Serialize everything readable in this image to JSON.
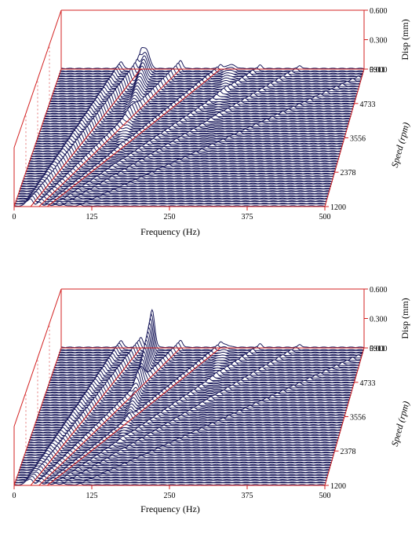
{
  "chart_data": [
    {
      "type": "waterfall",
      "xlabel": "Frequency (Hz)",
      "ylabel": "Speed (rpm)",
      "zlabel": "Disp (mm)",
      "x_ticks": [
        "0",
        "125",
        "250",
        "375",
        "500"
      ],
      "y_ticks": [
        "1200",
        "2378",
        "3556",
        "4733",
        "5911"
      ],
      "z_ticks": [
        "0.000",
        "0.300",
        "0.600"
      ],
      "xlim": [
        0,
        500
      ],
      "ylim": [
        1200,
        5911
      ],
      "zlim": [
        0,
        0.6
      ],
      "spectrum_count": 56,
      "colors": {
        "spectra": "#1a1a5c",
        "axes": "#d32020"
      },
      "orders": [
        {
          "slope": 1.0,
          "amp": 0.07,
          "width": 5
        },
        {
          "slope": 1.333,
          "amp": 0.13,
          "width": 5
        },
        {
          "slope": 2.0,
          "amp": 0.08,
          "width": 5
        },
        {
          "slope": 2.667,
          "amp": 0.04,
          "width": 4
        },
        {
          "slope": 3.333,
          "amp": 0.035,
          "width": 4
        },
        {
          "slope": 4.0,
          "amp": 0.03,
          "width": 4
        },
        {
          "slope": 5.333,
          "amp": 0.025,
          "width": 4
        }
      ],
      "resonances": [
        {
          "freq": 140,
          "amp": 0.2,
          "width": 8
        },
        {
          "freq": 280,
          "amp": 0.04,
          "width": 10
        }
      ]
    },
    {
      "type": "waterfall",
      "xlabel": "Frequency (Hz)",
      "ylabel": "Speed (rpm)",
      "zlabel": "Disp (mm)",
      "x_ticks": [
        "0",
        "125",
        "250",
        "375",
        "500"
      ],
      "y_ticks": [
        "1200",
        "2378",
        "3556",
        "4733",
        "5911"
      ],
      "z_ticks": [
        "0.000",
        "0.300",
        "0.600"
      ],
      "xlim": [
        0,
        500
      ],
      "ylim": [
        1200,
        5911
      ],
      "zlim": [
        0,
        0.6
      ],
      "spectrum_count": 56,
      "colors": {
        "spectra": "#1a1a5c",
        "axes": "#d32020"
      },
      "orders": [
        {
          "slope": 1.0,
          "amp": 0.07,
          "width": 5
        },
        {
          "slope": 1.333,
          "amp": 0.1,
          "width": 5
        },
        {
          "slope": 2.0,
          "amp": 0.07,
          "width": 5
        },
        {
          "slope": 2.667,
          "amp": 0.04,
          "width": 4
        },
        {
          "slope": 3.333,
          "amp": 0.035,
          "width": 4
        },
        {
          "slope": 4.0,
          "amp": 0.03,
          "width": 4
        },
        {
          "slope": 5.333,
          "amp": 0.025,
          "width": 4
        }
      ],
      "resonances": [
        {
          "freq": 150,
          "amp": 0.38,
          "width": 6
        },
        {
          "freq": 270,
          "amp": 0.03,
          "width": 10
        }
      ]
    }
  ]
}
